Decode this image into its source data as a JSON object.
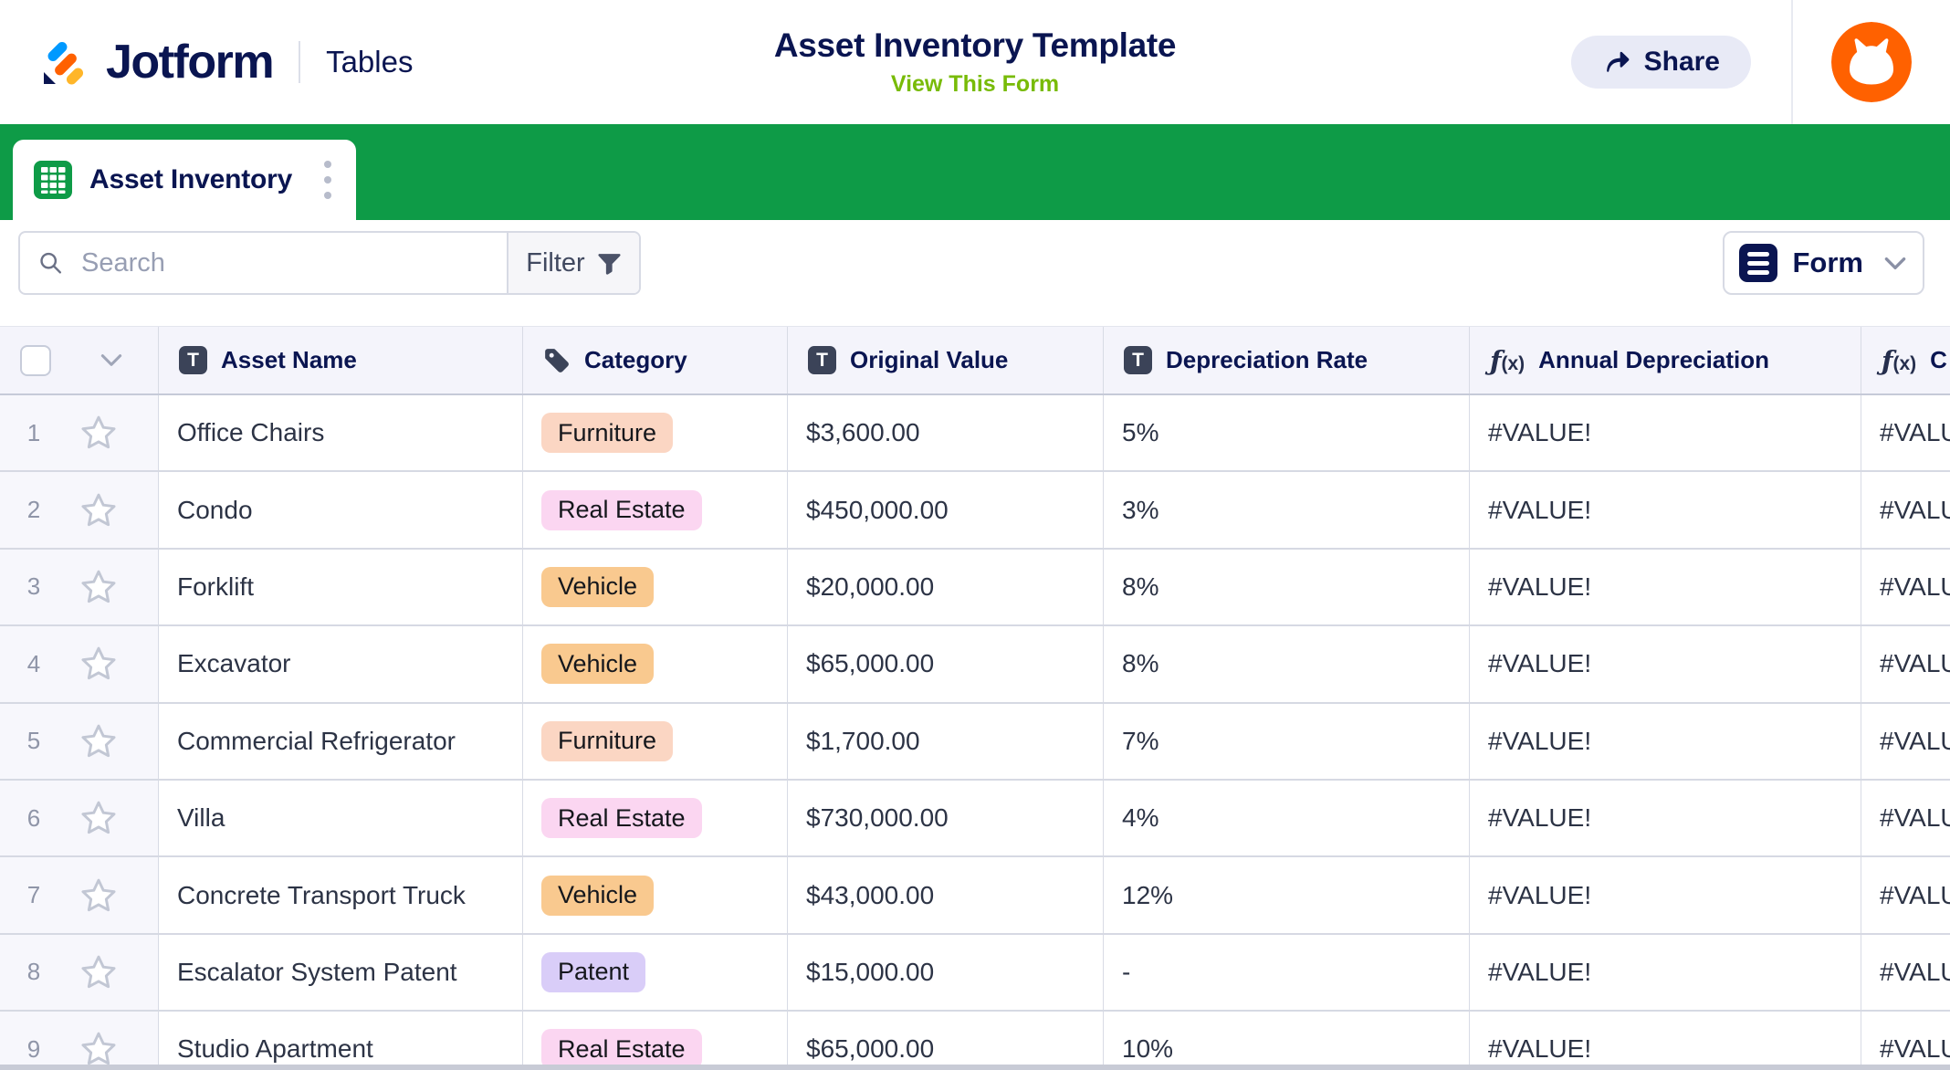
{
  "header": {
    "brand": "Jotform",
    "product": "Tables",
    "title": "Asset Inventory Template",
    "view_form": "View This Form",
    "share": "Share"
  },
  "tabs": {
    "active": "Asset Inventory"
  },
  "toolbar": {
    "search_placeholder": "Search",
    "filter": "Filter",
    "view_button": "Form"
  },
  "icons": [
    "jotform-logo-icon",
    "share-icon",
    "avatar",
    "table-grid-icon",
    "kebab-menu-icon",
    "search-icon",
    "filter-icon",
    "form-icon",
    "chevron-down-icon",
    "checkbox",
    "star-icon",
    "text-icon",
    "tag-icon",
    "formula-icon"
  ],
  "colors": {
    "navy": "#0a1551",
    "green_bar": "#0e9b47",
    "lime_link": "#78bb07",
    "orange": "#ff6100",
    "header_bg": "#f4f4fb",
    "share_bg": "#e8eaf6"
  },
  "category_colors": {
    "Furniture": "#fbd6c3",
    "Real Estate": "#fbd6f1",
    "Vehicle": "#f9c98f",
    "Patent": "#d9cdf8"
  },
  "table": {
    "columns": [
      {
        "label": "Asset Name",
        "icon": "text-icon"
      },
      {
        "label": "Category",
        "icon": "tag-icon"
      },
      {
        "label": "Original Value",
        "icon": "text-icon"
      },
      {
        "label": "Depreciation Rate",
        "icon": "text-icon"
      },
      {
        "label": "Annual Depreciation",
        "icon": "formula-icon"
      },
      {
        "label": "C",
        "icon": "formula-icon"
      }
    ],
    "rows": [
      {
        "num": "1",
        "cells": [
          "Office Chairs",
          "Furniture",
          "$3,600.00",
          "5%",
          "#VALUE!",
          "#VALUE!"
        ]
      },
      {
        "num": "2",
        "cells": [
          "Condo",
          "Real Estate",
          "$450,000.00",
          "3%",
          "#VALUE!",
          "#VALUE!"
        ]
      },
      {
        "num": "3",
        "cells": [
          "Forklift",
          "Vehicle",
          "$20,000.00",
          "8%",
          "#VALUE!",
          "#VALUE!"
        ]
      },
      {
        "num": "4",
        "cells": [
          "Excavator",
          "Vehicle",
          "$65,000.00",
          "8%",
          "#VALUE!",
          "#VALUE!"
        ]
      },
      {
        "num": "5",
        "cells": [
          "Commercial Refrigerator",
          "Furniture",
          "$1,700.00",
          "7%",
          "#VALUE!",
          "#VALUE!"
        ]
      },
      {
        "num": "6",
        "cells": [
          "Villa",
          "Real Estate",
          "$730,000.00",
          "4%",
          "#VALUE!",
          "#VALUE!"
        ]
      },
      {
        "num": "7",
        "cells": [
          "Concrete Transport Truck",
          "Vehicle",
          "$43,000.00",
          "12%",
          "#VALUE!",
          "#VALUE!"
        ]
      },
      {
        "num": "8",
        "cells": [
          "Escalator System Patent",
          "Patent",
          "$15,000.00",
          "-",
          "#VALUE!",
          "#VALUE!"
        ]
      },
      {
        "num": "9",
        "cells": [
          "Studio Apartment",
          "Real Estate",
          "$65,000.00",
          "10%",
          "#VALUE!",
          "#VALUE!"
        ]
      }
    ]
  }
}
